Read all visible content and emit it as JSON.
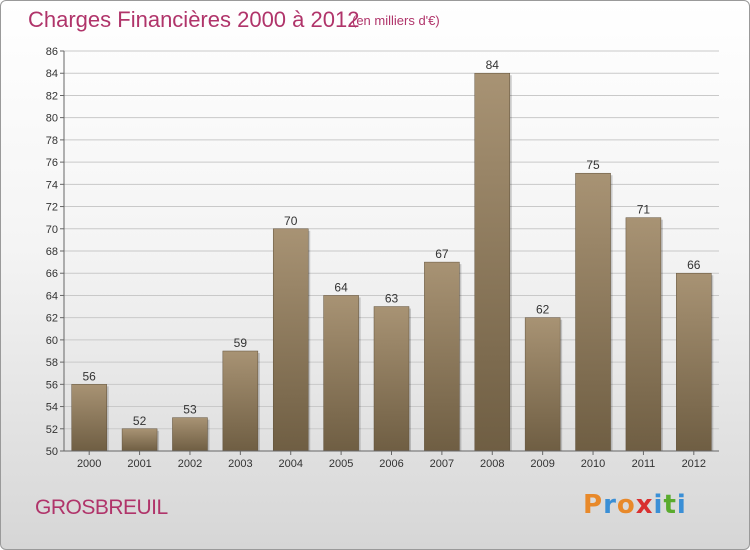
{
  "header": {
    "title": "Charges Financières 2000 à 2012",
    "subtitle": "(en milliers d'€)"
  },
  "footer": {
    "city": "GROSBREUIL",
    "logo_text": "Proxiti",
    "logo_colors": [
      "#e8892a",
      "#3a8fd6",
      "#e8892a",
      "#d93030",
      "#3a8fd6",
      "#5aab2e",
      "#3a8fd6"
    ]
  },
  "colors": {
    "bar_top": "#a89374",
    "bar_bottom": "#6f5e43",
    "grid": "#c9c9c9",
    "axis": "#666666",
    "title": "#b0346a"
  },
  "chart_data": {
    "type": "bar",
    "title": "Charges Financières 2000 à 2012",
    "subtitle": "(en milliers d'€)",
    "categories": [
      "2000",
      "2001",
      "2002",
      "2003",
      "2004",
      "2005",
      "2006",
      "2007",
      "2008",
      "2009",
      "2010",
      "2011",
      "2012"
    ],
    "values": [
      56,
      52,
      53,
      59,
      70,
      64,
      63,
      67,
      84,
      62,
      75,
      71,
      66
    ],
    "ylim": [
      50,
      86
    ],
    "yticks": [
      50,
      52,
      54,
      56,
      58,
      60,
      62,
      64,
      66,
      68,
      70,
      72,
      74,
      76,
      78,
      80,
      82,
      84,
      86
    ],
    "grid": true,
    "xlabel": "",
    "ylabel": ""
  }
}
